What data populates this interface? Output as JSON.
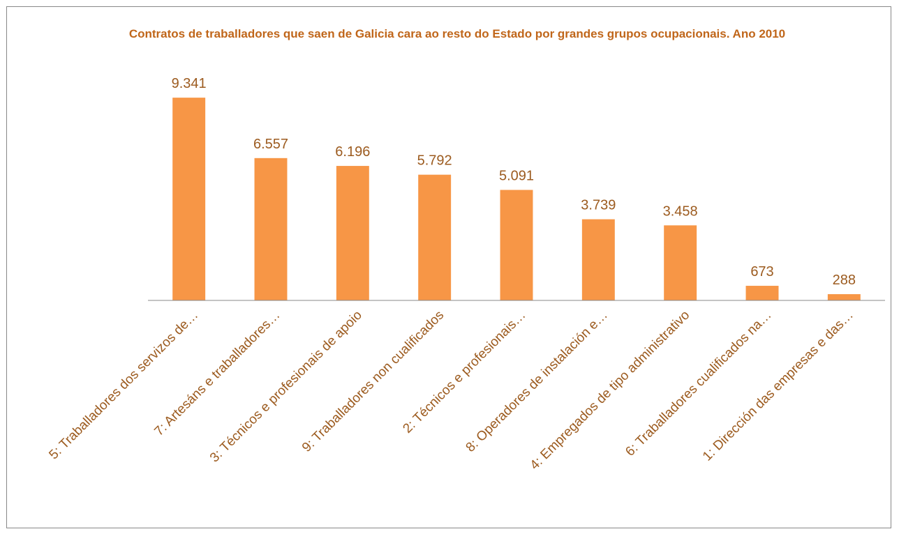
{
  "chart_data": {
    "type": "bar",
    "title": "Contratos de traballadores que saen de Galicia cara ao resto do Estado por grandes grupos ocupacionais. Ano 2010",
    "categories": [
      "5: Traballadores dos servizos de…",
      "7: Artesáns e traballadores…",
      "3: Técnicos e profesionais de apoio",
      "9: Traballadores non cualificados",
      "2: Técnicos e profesionais…",
      "8: Operadores de instalación e…",
      "4: Empregados de tipo administrativo",
      "6: Traballadores cualificados na…",
      "1: Dirección das empresas e das…"
    ],
    "values": [
      9341,
      6557,
      6196,
      5792,
      5091,
      3739,
      3458,
      673,
      288
    ],
    "value_labels": [
      "9.341",
      "6.557",
      "6.196",
      "5.792",
      "5.091",
      "3.739",
      "3.458",
      "673",
      "288"
    ],
    "color": "#f79646",
    "ylim": [
      0,
      10000
    ]
  }
}
